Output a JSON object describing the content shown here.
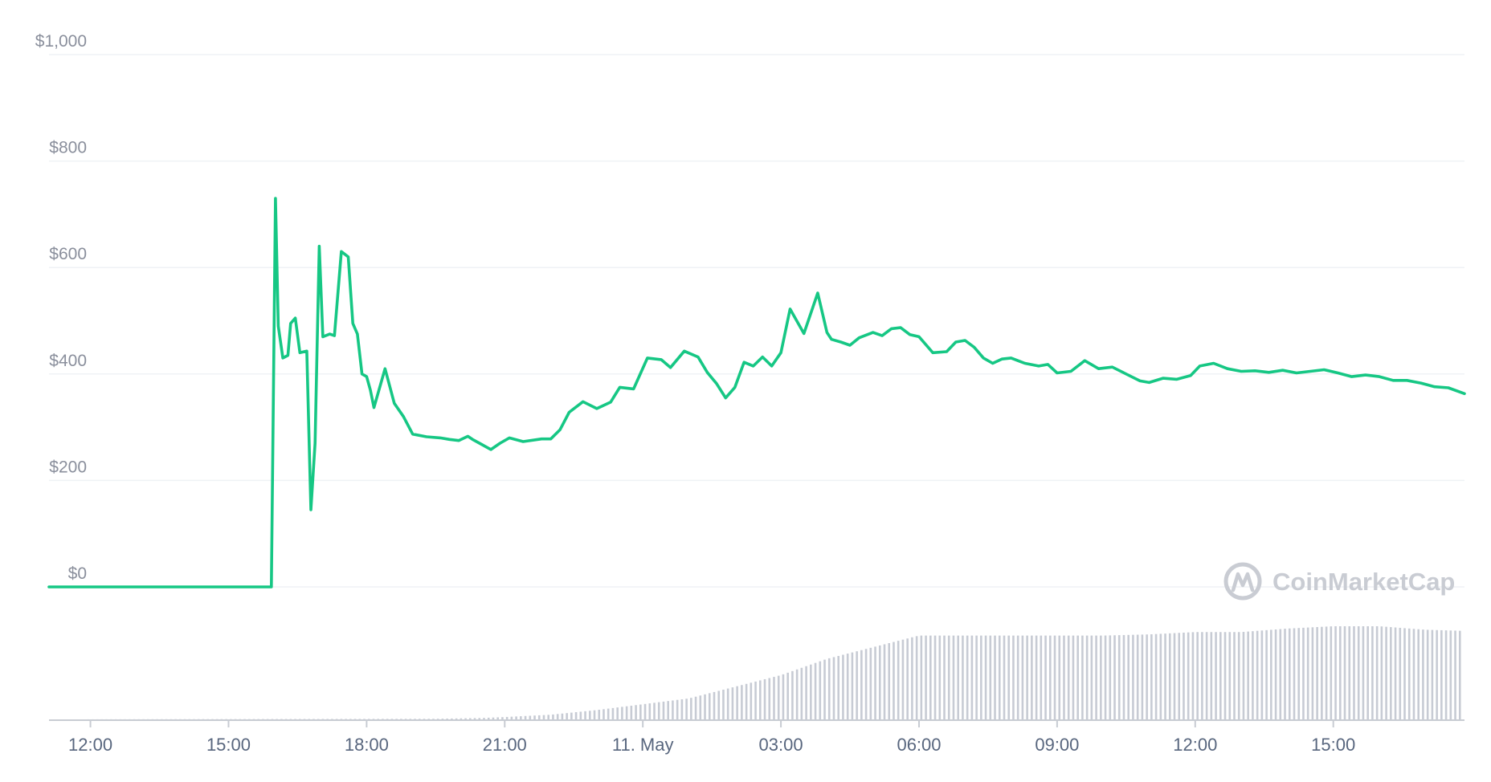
{
  "watermark": {
    "text": "CoinMarketCap"
  },
  "colors": {
    "price_line": "#16c784",
    "grid": "#eff2f5",
    "volume": "#c7cbd4",
    "axis": "#c8ccd3"
  },
  "chart_data": {
    "type": "line",
    "title": "",
    "xlabel": "",
    "ylabel": "",
    "y_ticks": [
      "$0",
      "$200",
      "$400",
      "$600",
      "$800",
      "$1,000"
    ],
    "ylim": [
      0,
      1000
    ],
    "x_ticks": [
      "12:00",
      "15:00",
      "18:00",
      "21:00",
      "11. May",
      "03:00",
      "06:00",
      "09:00",
      "12:00",
      "15:00"
    ],
    "x_tick_hours": [
      12,
      15,
      18,
      21,
      24,
      27,
      30,
      33,
      36,
      39
    ],
    "xlim_hours": [
      11.1,
      41.85
    ],
    "grid": true,
    "x_unit_note": "hours from 10 May 00:00",
    "price_series": {
      "x": [
        11.1,
        15.93,
        16.02,
        16.08,
        16.18,
        16.29,
        16.35,
        16.45,
        16.55,
        16.7,
        16.79,
        16.88,
        16.97,
        17.05,
        17.2,
        17.3,
        17.45,
        17.6,
        17.7,
        17.8,
        17.9,
        18.0,
        18.08,
        18.16,
        18.4,
        18.6,
        18.8,
        19.0,
        19.3,
        19.6,
        19.8,
        20.0,
        20.2,
        20.3,
        20.45,
        20.7,
        20.9,
        21.1,
        21.4,
        21.8,
        22.0,
        22.2,
        22.4,
        22.7,
        23.0,
        23.3,
        23.5,
        23.8,
        24.1,
        24.4,
        24.6,
        24.9,
        25.2,
        25.4,
        25.6,
        25.8,
        26.0,
        26.2,
        26.4,
        26.6,
        26.8,
        27.0,
        27.2,
        27.5,
        27.8,
        28.0,
        28.1,
        28.3,
        28.5,
        28.7,
        29.0,
        29.2,
        29.4,
        29.6,
        29.8,
        30.0,
        30.3,
        30.6,
        30.8,
        31.0,
        31.2,
        31.4,
        31.6,
        31.8,
        32.0,
        32.3,
        32.6,
        32.8,
        33.0,
        33.3,
        33.6,
        33.9,
        34.2,
        34.5,
        34.8,
        35.0,
        35.3,
        35.6,
        35.9,
        36.1,
        36.4,
        36.7,
        37.0,
        37.3,
        37.6,
        37.9,
        38.2,
        38.5,
        38.8,
        39.1,
        39.4,
        39.7,
        40.0,
        40.3,
        40.6,
        40.9,
        41.2,
        41.5,
        41.85
      ],
      "y": [
        0,
        0,
        730,
        490,
        430,
        435,
        495,
        505,
        440,
        443,
        145,
        270,
        640,
        470,
        475,
        472,
        630,
        620,
        495,
        475,
        400,
        395,
        370,
        337,
        410,
        345,
        320,
        287,
        282,
        280,
        277,
        275,
        283,
        277,
        270,
        258,
        270,
        280,
        273,
        278,
        278,
        295,
        328,
        348,
        335,
        347,
        375,
        372,
        430,
        427,
        412,
        443,
        432,
        403,
        382,
        355,
        375,
        422,
        415,
        432,
        415,
        440,
        522,
        476,
        552,
        478,
        465,
        460,
        454,
        468,
        478,
        472,
        485,
        487,
        474,
        470,
        440,
        442,
        460,
        463,
        450,
        430,
        420,
        428,
        430,
        420,
        415,
        418,
        402,
        405,
        425,
        410,
        413,
        400,
        387,
        384,
        392,
        390,
        397,
        415,
        420,
        410,
        405,
        406,
        403,
        407,
        402,
        405,
        408,
        402,
        395,
        398,
        395,
        388,
        388,
        383,
        376,
        374,
        363
      ]
    },
    "volume_series": {
      "x": [
        11.1,
        19.5,
        20.5,
        21.0,
        22.0,
        23.0,
        24.0,
        25.0,
        26.0,
        27.0,
        28.0,
        29.0,
        30.0,
        31.0,
        32.0,
        33.0,
        34.0,
        35.0,
        36.0,
        37.0,
        38.0,
        39.0,
        40.0,
        41.0,
        41.85
      ],
      "y": [
        0,
        0.5,
        1.2,
        2,
        4,
        8,
        13,
        18,
        28,
        38,
        52,
        62,
        72,
        72,
        72,
        72,
        72,
        73,
        75,
        75,
        78,
        80,
        80,
        77,
        76
      ]
    }
  }
}
